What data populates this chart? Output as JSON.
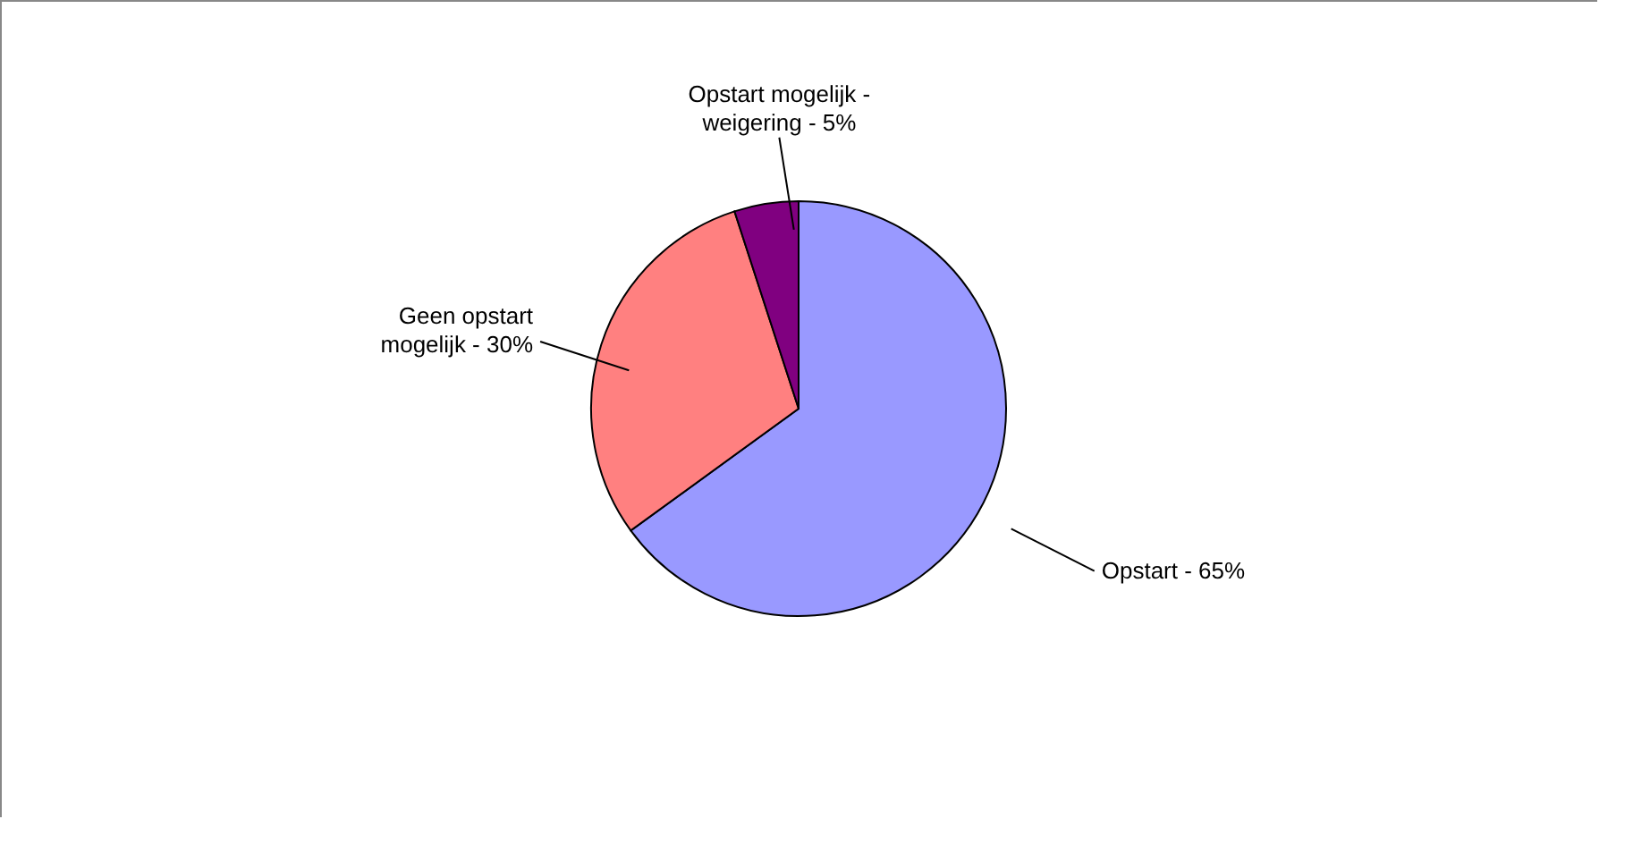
{
  "chart_data": {
    "type": "pie",
    "categories": [
      "Opstart - 65%",
      "Geen opstart mogelijk - 30%",
      "Opstart mogelijk - weigering - 5%"
    ],
    "values": [
      65,
      30,
      5
    ],
    "colors": [
      "#9999ff",
      "#ff8080",
      "#800080"
    ]
  }
}
